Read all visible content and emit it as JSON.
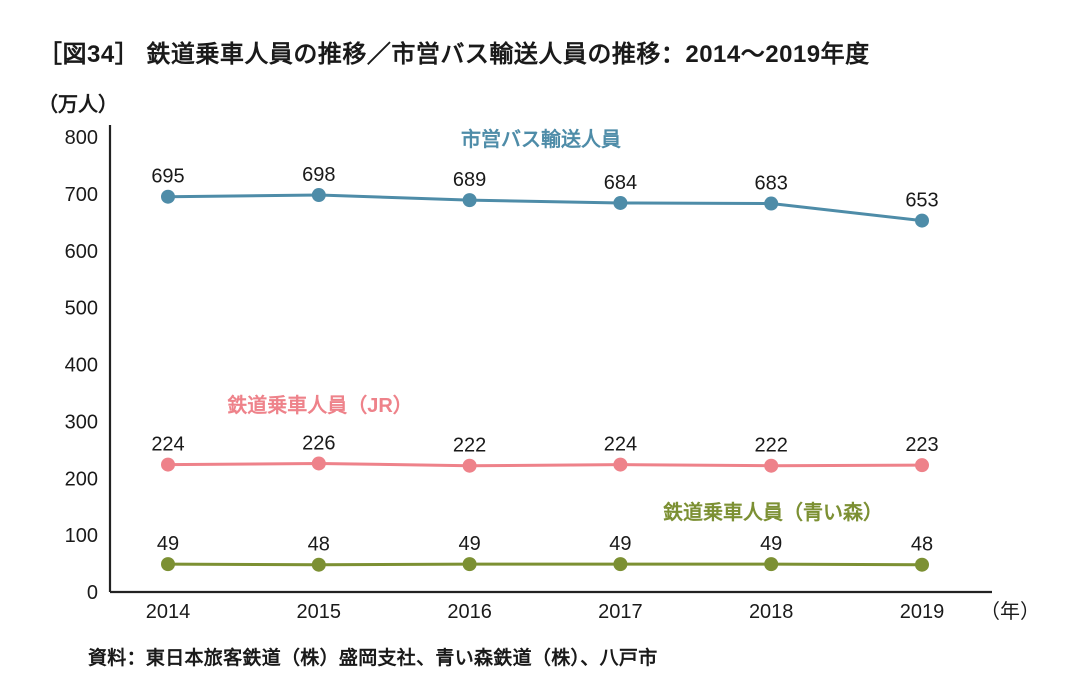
{
  "title": "［図34］ 鉄道乗車人員の推移／市営バス輸送人員の推移：2014～2019年度",
  "unit_label": "（万人）",
  "x_axis_unit": "（年）",
  "source": "資料：東日本旅客鉄道（株）盛岡支社、青い森鉄道（株）、八戸市",
  "colors": {
    "bus": "#4e8ca8",
    "jr": "#ee828a",
    "aoimori": "#7c9033",
    "axis": "#222222",
    "text": "#1a1a1a"
  },
  "chart_data": {
    "type": "line",
    "categories": [
      "2014",
      "2015",
      "2016",
      "2017",
      "2018",
      "2019"
    ],
    "series": [
      {
        "name": "市営バス輸送人員",
        "values": [
          695,
          698,
          689,
          684,
          683,
          653
        ],
        "color_key": "bus",
        "label_pos": {
          "x": 541,
          "y": 146
        }
      },
      {
        "name": "鉄道乗車人員（JR）",
        "values": [
          224,
          226,
          222,
          224,
          222,
          223
        ],
        "color_key": "jr",
        "label_pos": {
          "x": 320,
          "y": 412
        }
      },
      {
        "name": "鉄道乗車人員（青い森）",
        "values": [
          49,
          48,
          49,
          49,
          49,
          48
        ],
        "color_key": "aoimori",
        "label_pos": {
          "x": 773,
          "y": 519
        }
      }
    ],
    "title": "鉄道乗車人員の推移／市営バス輸送人員の推移：2014～2019年度",
    "xlabel": "年",
    "ylabel": "万人",
    "ylim": [
      0,
      800
    ],
    "ytick_step": 100,
    "grid": false,
    "legend_position": "inline-labels-colored-near-each-line",
    "data_labels": true
  }
}
